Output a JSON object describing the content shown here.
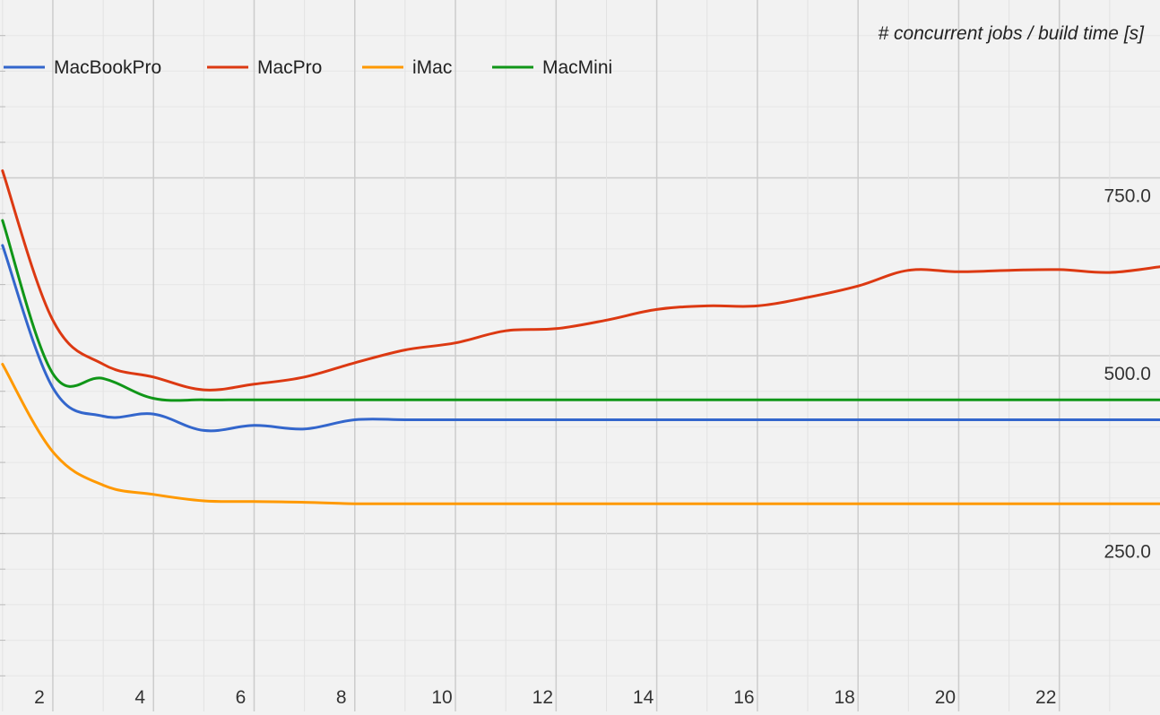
{
  "chart_data": {
    "type": "line",
    "title": "# concurrent jobs / build time [s]",
    "x": [
      1,
      2,
      3,
      4,
      5,
      6,
      7,
      8,
      9,
      10,
      11,
      12,
      13,
      14,
      15,
      16,
      17,
      18,
      19,
      20,
      21,
      22,
      23,
      24
    ],
    "x_ticks": [
      2,
      4,
      6,
      8,
      10,
      12,
      14,
      16,
      18,
      20,
      22
    ],
    "x_tick_labels": [
      "2",
      "4",
      "6",
      "8",
      "10",
      "12",
      "14",
      "16",
      "18",
      "20",
      "22"
    ],
    "xlim": [
      0.95,
      24
    ],
    "y_ticks": [
      250,
      500,
      750
    ],
    "y_tick_labels": [
      "250.0",
      "500.0",
      "750.0"
    ],
    "ylim": [
      0,
      1000
    ],
    "grid": true,
    "legend_position": "top-left",
    "series": [
      {
        "name": "MacBookPro",
        "color": "#3366cc",
        "values": [
          655,
          455,
          415,
          418,
          395,
          402,
          397,
          410,
          410,
          410,
          410,
          410,
          410,
          410,
          410,
          410,
          410,
          410,
          410,
          410,
          410,
          410,
          410,
          410
        ]
      },
      {
        "name": "MacPro",
        "color": "#dc3912",
        "values": [
          760,
          550,
          488,
          470,
          452,
          460,
          470,
          490,
          508,
          518,
          535,
          538,
          550,
          565,
          570,
          570,
          582,
          598,
          620,
          618,
          620,
          621,
          617,
          625
        ]
      },
      {
        "name": "iMac",
        "color": "#ff9900",
        "values": [
          488,
          365,
          318,
          305,
          296,
          295,
          294,
          292,
          292,
          292,
          292,
          292,
          292,
          292,
          292,
          292,
          292,
          292,
          292,
          292,
          292,
          292,
          292,
          292
        ]
      },
      {
        "name": "MacMini",
        "color": "#109618",
        "values": [
          690,
          475,
          468,
          440,
          438,
          438,
          438,
          438,
          438,
          438,
          438,
          438,
          438,
          438,
          438,
          438,
          438,
          438,
          438,
          438,
          438,
          438,
          438,
          438
        ]
      }
    ]
  }
}
